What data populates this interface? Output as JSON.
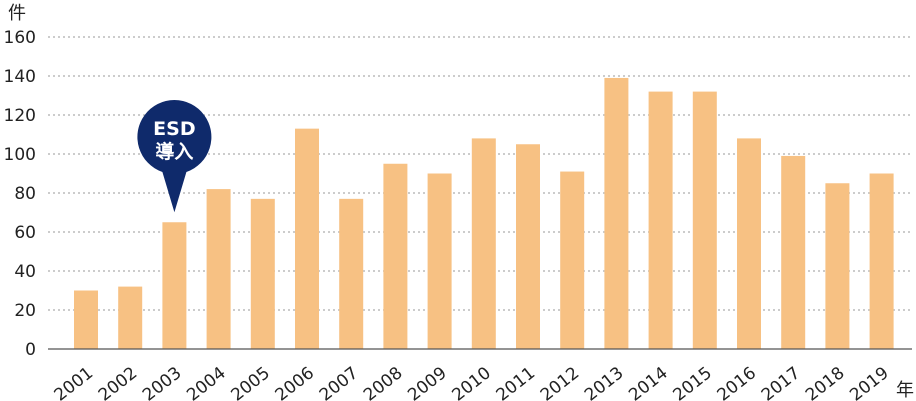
{
  "chart_data": {
    "type": "bar",
    "title": "",
    "xlabel": "年",
    "ylabel": "件",
    "categories": [
      "2001",
      "2002",
      "2003",
      "2004",
      "2005",
      "2006",
      "2007",
      "2008",
      "2009",
      "2010",
      "2011",
      "2012",
      "2013",
      "2014",
      "2015",
      "2016",
      "2017",
      "2018",
      "2019"
    ],
    "values": [
      30,
      32,
      65,
      82,
      77,
      113,
      77,
      95,
      90,
      108,
      105,
      91,
      139,
      132,
      132,
      108,
      99,
      85,
      90
    ],
    "ylim": [
      0,
      160
    ],
    "yticks": [
      0,
      20,
      40,
      60,
      80,
      100,
      120,
      140,
      160
    ],
    "grid": true,
    "bar_color": "#f7c183",
    "grid_color": "#9a9a9a",
    "annotations": [
      {
        "category": "2003",
        "line1": "ESD",
        "line2": "導入",
        "color": "#0f2a6b"
      }
    ]
  }
}
